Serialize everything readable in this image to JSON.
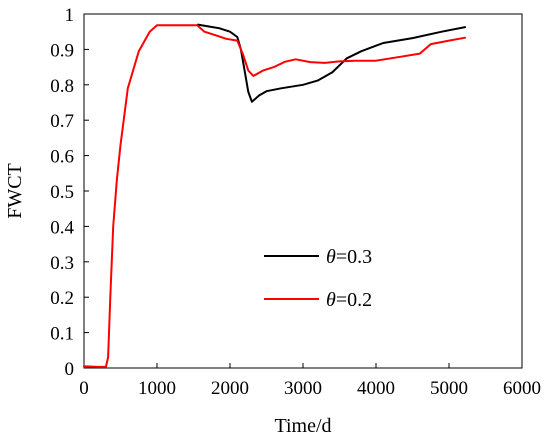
{
  "chart_data": {
    "type": "line",
    "xlabel": "Time/d",
    "ylabel": "FWCT",
    "xlim": [
      0,
      6000
    ],
    "ylim": [
      0,
      1
    ],
    "x_ticks": [
      0,
      1000,
      2000,
      3000,
      4000,
      5000,
      6000
    ],
    "y_ticks": [
      0,
      0.1,
      0.2,
      0.3,
      0.4,
      0.5,
      0.6,
      0.7,
      0.8,
      0.9,
      1
    ],
    "y_tick_labels": [
      "0",
      "0.1",
      "0.2",
      "0.3",
      "0.4",
      "0.5",
      "0.6",
      "0.7",
      "0.8",
      "0.9",
      "1"
    ],
    "grid": false,
    "legend_position": "center-right",
    "series": [
      {
        "name": "θ=0.3",
        "legend_symbol": "θ",
        "legend_value": "=0.3",
        "color": "#000000",
        "x": [
          1560,
          1700,
          1850,
          2000,
          2100,
          2150,
          2200,
          2250,
          2300,
          2400,
          2500,
          2700,
          3000,
          3200,
          3400,
          3600,
          3800,
          4100,
          4500,
          4900,
          5220
        ],
        "y": [
          0.97,
          0.965,
          0.96,
          0.95,
          0.935,
          0.9,
          0.84,
          0.78,
          0.752,
          0.77,
          0.782,
          0.79,
          0.8,
          0.812,
          0.835,
          0.875,
          0.895,
          0.918,
          0.932,
          0.95,
          0.963
        ]
      },
      {
        "name": "θ=0.2",
        "legend_symbol": "θ",
        "legend_value": "=0.2",
        "color": "#ff0000",
        "x": [
          0,
          100,
          200,
          300,
          330,
          360,
          400,
          450,
          500,
          600,
          750,
          900,
          1000,
          1200,
          1400,
          1550,
          1650,
          1800,
          1950,
          2100,
          2180,
          2250,
          2320,
          2450,
          2600,
          2750,
          2900,
          3100,
          3300,
          3500,
          3700,
          4000,
          4300,
          4600,
          4750,
          5000,
          5220
        ],
        "y": [
          0.005,
          0.004,
          0.003,
          0.003,
          0.03,
          0.2,
          0.4,
          0.53,
          0.63,
          0.79,
          0.895,
          0.95,
          0.968,
          0.968,
          0.968,
          0.968,
          0.95,
          0.94,
          0.93,
          0.925,
          0.885,
          0.84,
          0.825,
          0.84,
          0.85,
          0.865,
          0.872,
          0.864,
          0.862,
          0.866,
          0.868,
          0.868,
          0.878,
          0.888,
          0.915,
          0.925,
          0.933
        ]
      }
    ]
  }
}
